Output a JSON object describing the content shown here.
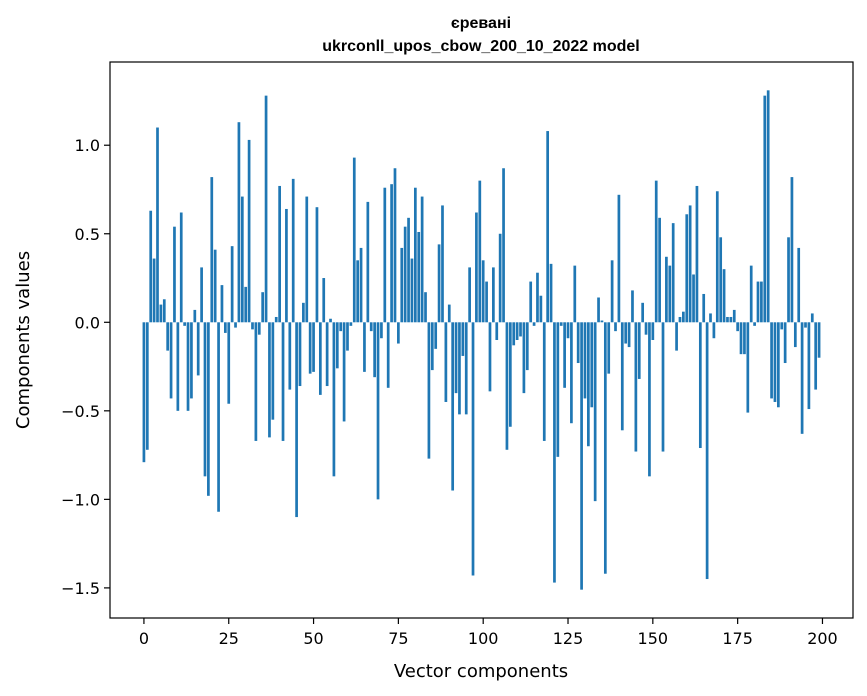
{
  "chart_data": {
    "type": "bar",
    "title_line1": "єревані",
    "title_line2": "ukrconll_upos_cbow_200_10_2022 model",
    "xlabel": "Vector components",
    "ylabel": "Components values",
    "xlim": [
      -10,
      209
    ],
    "ylim": [
      -1.67,
      1.47
    ],
    "xticks": [
      0,
      25,
      50,
      75,
      100,
      125,
      150,
      175,
      200
    ],
    "xtick_labels": [
      "0",
      "25",
      "50",
      "75",
      "100",
      "125",
      "150",
      "175",
      "200"
    ],
    "yticks": [
      1.0,
      0.5,
      0.0,
      -0.5,
      -1.0,
      -1.5
    ],
    "ytick_labels": [
      "1.0",
      "0.5",
      "0.0",
      "−0.5",
      "−1.0",
      "−1.5"
    ],
    "bar_color": "#1f77b4",
    "values": [
      -0.79,
      -0.72,
      0.63,
      0.36,
      1.1,
      0.1,
      0.13,
      -0.16,
      -0.43,
      0.54,
      -0.5,
      0.62,
      -0.02,
      -0.5,
      -0.43,
      0.07,
      -0.3,
      0.31,
      -0.87,
      -0.98,
      0.82,
      0.41,
      -1.07,
      0.21,
      -0.06,
      -0.46,
      0.43,
      -0.03,
      1.13,
      0.71,
      0.2,
      1.03,
      -0.04,
      -0.67,
      -0.07,
      0.17,
      1.28,
      -0.65,
      -0.55,
      0.03,
      0.77,
      -0.67,
      0.64,
      -0.38,
      0.81,
      -1.1,
      -0.36,
      0.11,
      0.71,
      -0.29,
      -0.28,
      0.65,
      -0.41,
      0.25,
      -0.36,
      0.02,
      -0.87,
      -0.26,
      -0.05,
      -0.56,
      -0.16,
      -0.02,
      0.93,
      0.35,
      0.42,
      -0.28,
      0.68,
      -0.05,
      -0.31,
      -1.0,
      -0.09,
      0.76,
      -0.37,
      0.78,
      0.87,
      -0.12,
      0.42,
      0.54,
      0.59,
      0.36,
      0.76,
      0.51,
      0.71,
      0.17,
      -0.77,
      -0.27,
      -0.15,
      0.44,
      0.66,
      -0.45,
      0.1,
      -0.95,
      -0.4,
      -0.52,
      -0.19,
      -0.52,
      0.31,
      -1.43,
      0.62,
      0.8,
      0.35,
      0.23,
      -0.39,
      0.31,
      -0.1,
      0.5,
      0.87,
      -0.72,
      -0.59,
      -0.13,
      -0.1,
      -0.08,
      -0.4,
      -0.27,
      0.23,
      -0.02,
      0.28,
      0.15,
      -0.67,
      1.08,
      0.33,
      -1.47,
      -0.76,
      -0.02,
      -0.37,
      -0.09,
      -0.57,
      0.32,
      -0.23,
      -1.51,
      -0.43,
      -0.7,
      -0.48,
      -1.01,
      0.14,
      0.01,
      -1.42,
      -0.29,
      0.35,
      -0.05,
      0.72,
      -0.61,
      -0.12,
      -0.14,
      0.18,
      -0.73,
      -0.32,
      0.11,
      -0.07,
      -0.87,
      -0.1,
      0.8,
      0.59,
      -0.73,
      0.37,
      0.32,
      0.56,
      -0.16,
      0.03,
      0.06,
      0.61,
      0.66,
      0.27,
      0.77,
      -0.71,
      0.16,
      -1.45,
      0.05,
      -0.09,
      0.74,
      0.48,
      0.3,
      0.03,
      0.03,
      0.07,
      -0.05,
      -0.18,
      -0.18,
      -0.51,
      0.32,
      -0.02,
      0.23,
      0.23,
      1.28,
      1.31,
      -0.43,
      -0.45,
      -0.48,
      -0.04,
      -0.23,
      0.48,
      0.82,
      -0.14,
      0.42,
      -0.63,
      -0.03,
      -0.49,
      0.05,
      -0.38,
      -0.2
    ]
  }
}
